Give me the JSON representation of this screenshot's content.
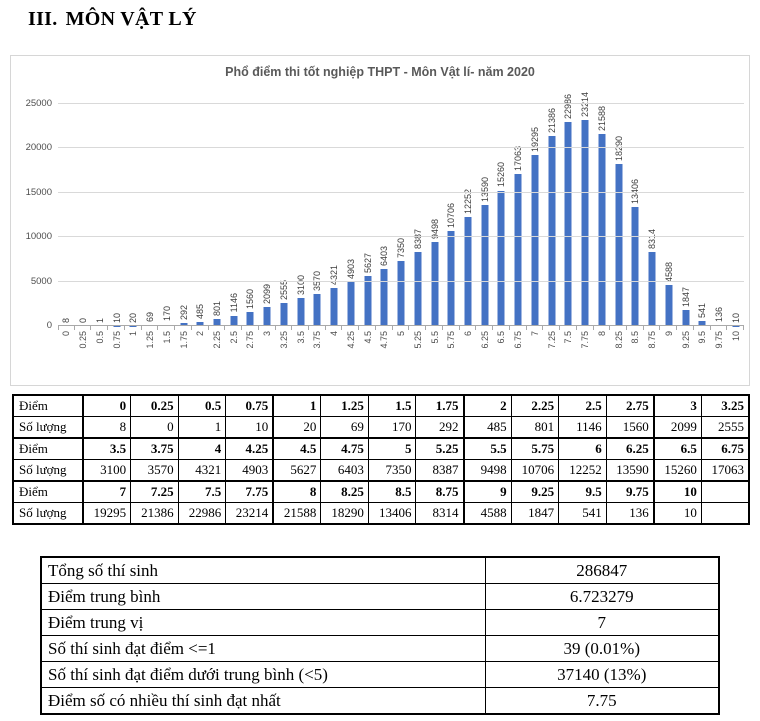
{
  "heading": {
    "number": "III.",
    "title": "MÔN VẬT LÝ"
  },
  "chart_data": {
    "type": "bar",
    "title": "Phổ điểm thi tốt nghiệp THPT - Môn Vật lí- năm 2020",
    "xlabel": "",
    "ylabel": "",
    "categories": [
      "0",
      "0.25",
      "0.5",
      "0.75",
      "1",
      "1.25",
      "1.5",
      "1.75",
      "2",
      "2.25",
      "2.5",
      "2.75",
      "3",
      "3.25",
      "3.5",
      "3.75",
      "4",
      "4.25",
      "4.5",
      "4.75",
      "5",
      "5.25",
      "5.5",
      "5.75",
      "6",
      "6.25",
      "6.5",
      "6.75",
      "7",
      "7.25",
      "7.5",
      "7.75",
      "8",
      "8.25",
      "8.5",
      "8.75",
      "9",
      "9.25",
      "9.5",
      "9.75",
      "10"
    ],
    "values": [
      8,
      0,
      1,
      10,
      20,
      69,
      170,
      292,
      485,
      801,
      1146,
      1560,
      2099,
      2555,
      3100,
      3570,
      4321,
      4903,
      5627,
      6403,
      7350,
      8387,
      9498,
      10706,
      12252,
      13590,
      15260,
      17063,
      19295,
      21386,
      22986,
      23214,
      21588,
      18290,
      13406,
      8314,
      4588,
      1847,
      541,
      136,
      10
    ],
    "ylim": [
      0,
      25000
    ],
    "yticks": [
      0,
      5000,
      10000,
      15000,
      20000,
      25000
    ],
    "grid": true,
    "legend": "none",
    "bar_color": "#4472C4",
    "gridline_color": "#D9D9D9",
    "axis_text_color": "#4D4D4D",
    "data_label_color": "#3D3D3D",
    "data_labels_rotation": "vertical",
    "category_labels_rotation": "vertical"
  },
  "score_table": {
    "score_label": "Điểm",
    "count_label": "Số lượng",
    "groups": [
      {
        "diem": [
          "0",
          "0.25",
          "0.5",
          "0.75",
          "1",
          "1.25",
          "1.5",
          "1.75",
          "2",
          "2.25",
          "2.5",
          "2.75",
          "3",
          "3.25"
        ],
        "soluong": [
          "8",
          "0",
          "1",
          "10",
          "20",
          "69",
          "170",
          "292",
          "485",
          "801",
          "1146",
          "1560",
          "2099",
          "2555"
        ]
      },
      {
        "diem": [
          "3.5",
          "3.75",
          "4",
          "4.25",
          "4.5",
          "4.75",
          "5",
          "5.25",
          "5.5",
          "5.75",
          "6",
          "6.25",
          "6.5",
          "6.75"
        ],
        "soluong": [
          "3100",
          "3570",
          "4321",
          "4903",
          "5627",
          "6403",
          "7350",
          "8387",
          "9498",
          "10706",
          "12252",
          "13590",
          "15260",
          "17063"
        ]
      },
      {
        "diem": [
          "7",
          "7.25",
          "7.5",
          "7.75",
          "8",
          "8.25",
          "8.5",
          "8.75",
          "9",
          "9.25",
          "9.5",
          "9.75",
          "10",
          ""
        ],
        "soluong": [
          "19295",
          "21386",
          "22986",
          "23214",
          "21588",
          "18290",
          "13406",
          "8314",
          "4588",
          "1847",
          "541",
          "136",
          "10",
          ""
        ]
      }
    ]
  },
  "summary_table": {
    "rows": [
      {
        "label": "Tổng số thí sinh",
        "value": "286847"
      },
      {
        "label": "Điểm trung bình",
        "value": "6.723279"
      },
      {
        "label": "Điểm trung vị",
        "value": "7"
      },
      {
        "label": "Số thí sinh đạt điểm <=1",
        "value": "39 (0.01%)"
      },
      {
        "label": "Số thí sinh đạt điểm dưới trung bình (<5)",
        "value": "37140 (13%)"
      },
      {
        "label": "Điểm số có nhiều thí sinh đạt nhất",
        "value": "7.75"
      }
    ]
  }
}
